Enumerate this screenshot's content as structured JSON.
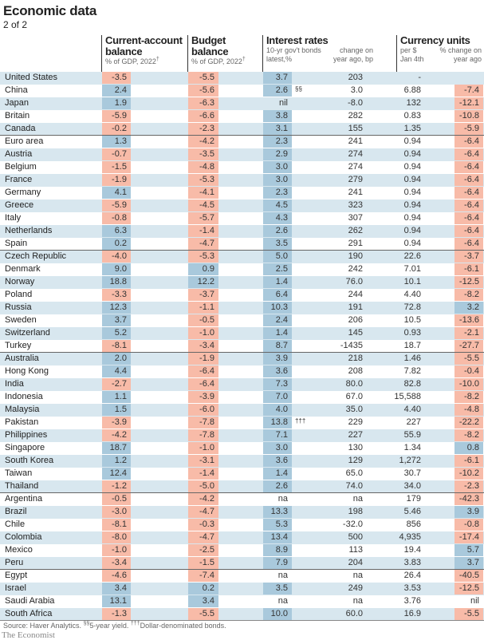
{
  "title": "Economic data",
  "subtitle": "2 of 2",
  "headers": {
    "current_account": {
      "title": "Current-account balance",
      "sub": "% of GDP, 2022",
      "mark": "†"
    },
    "budget": {
      "title": "Budget balance",
      "sub": "% of GDP, 2022",
      "mark": "†"
    },
    "interest": {
      "title": "Interest rates",
      "sub1": "10-yr gov't bonds latest,%",
      "sub2": "change on year ago, bp"
    },
    "currency": {
      "title": "Currency units",
      "sub1": "per $ Jan 4th",
      "sub2": "% change on year ago"
    }
  },
  "colors": {
    "stripe": "#d8e7ef",
    "positive": "#a9c9dc",
    "negative": "#f8bba8"
  },
  "group_ends": [
    4,
    13,
    21,
    32,
    38
  ],
  "rows": [
    [
      "United States",
      "-3.5",
      "-5.5",
      "3.7",
      "",
      "203",
      "-",
      ""
    ],
    [
      "China",
      "2.4",
      "-5.6",
      "2.6",
      "§§",
      "3.0",
      "6.88",
      "-7.4"
    ],
    [
      "Japan",
      "1.9",
      "-6.3",
      "nil",
      "",
      "-8.0",
      "132",
      "-12.1"
    ],
    [
      "Britain",
      "-5.9",
      "-6.6",
      "3.8",
      "",
      "282",
      "0.83",
      "-10.8"
    ],
    [
      "Canada",
      "-0.2",
      "-2.3",
      "3.1",
      "",
      "155",
      "1.35",
      "-5.9"
    ],
    [
      "Euro area",
      "1.3",
      "-4.2",
      "2.3",
      "",
      "241",
      "0.94",
      "-6.4"
    ],
    [
      "Austria",
      "-0.7",
      "-3.5",
      "2.9",
      "",
      "274",
      "0.94",
      "-6.4"
    ],
    [
      "Belgium",
      "-1.5",
      "-4.8",
      "3.0",
      "",
      "274",
      "0.94",
      "-6.4"
    ],
    [
      "France",
      "-1.9",
      "-5.3",
      "3.0",
      "",
      "279",
      "0.94",
      "-6.4"
    ],
    [
      "Germany",
      "4.1",
      "-4.1",
      "2.3",
      "",
      "241",
      "0.94",
      "-6.4"
    ],
    [
      "Greece",
      "-5.9",
      "-4.5",
      "4.5",
      "",
      "323",
      "0.94",
      "-6.4"
    ],
    [
      "Italy",
      "-0.8",
      "-5.7",
      "4.3",
      "",
      "307",
      "0.94",
      "-6.4"
    ],
    [
      "Netherlands",
      "6.3",
      "-1.4",
      "2.6",
      "",
      "262",
      "0.94",
      "-6.4"
    ],
    [
      "Spain",
      "0.2",
      "-4.7",
      "3.5",
      "",
      "291",
      "0.94",
      "-6.4"
    ],
    [
      "Czech Republic",
      "-4.0",
      "-5.3",
      "5.0",
      "",
      "190",
      "22.6",
      "-3.7"
    ],
    [
      "Denmark",
      "9.0",
      "0.9",
      "2.5",
      "",
      "242",
      "7.01",
      "-6.1"
    ],
    [
      "Norway",
      "18.8",
      "12.2",
      "1.4",
      "",
      "76.0",
      "10.1",
      "-12.5"
    ],
    [
      "Poland",
      "-3.3",
      "-3.7",
      "6.4",
      "",
      "244",
      "4.40",
      "-8.2"
    ],
    [
      "Russia",
      "12.3",
      "-1.1",
      "10.3",
      "",
      "191",
      "72.8",
      "3.2"
    ],
    [
      "Sweden",
      "3.7",
      "-0.5",
      "2.4",
      "",
      "206",
      "10.5",
      "-13.6"
    ],
    [
      "Switzerland",
      "5.2",
      "-1.0",
      "1.4",
      "",
      "145",
      "0.93",
      "-2.1"
    ],
    [
      "Turkey",
      "-8.1",
      "-3.4",
      "8.7",
      "",
      "-1435",
      "18.7",
      "-27.7"
    ],
    [
      "Australia",
      "2.0",
      "-1.9",
      "3.9",
      "",
      "218",
      "1.46",
      "-5.5"
    ],
    [
      "Hong Kong",
      "4.4",
      "-6.4",
      "3.6",
      "",
      "208",
      "7.82",
      "-0.4"
    ],
    [
      "India",
      "-2.7",
      "-6.4",
      "7.3",
      "",
      "80.0",
      "82.8",
      "-10.0"
    ],
    [
      "Indonesia",
      "1.1",
      "-3.9",
      "7.0",
      "",
      "67.0",
      "15,588",
      "-8.2"
    ],
    [
      "Malaysia",
      "1.5",
      "-6.0",
      "4.0",
      "",
      "35.0",
      "4.40",
      "-4.8"
    ],
    [
      "Pakistan",
      "-3.9",
      "-7.8",
      "13.8",
      "†††",
      "229",
      "227",
      "-22.2"
    ],
    [
      "Philippines",
      "-4.2",
      "-7.8",
      "7.1",
      "",
      "227",
      "55.9",
      "-8.2"
    ],
    [
      "Singapore",
      "18.7",
      "-1.0",
      "3.0",
      "",
      "130",
      "1.34",
      "0.8"
    ],
    [
      "South Korea",
      "1.2",
      "-3.1",
      "3.6",
      "",
      "129",
      "1,272",
      "-6.1"
    ],
    [
      "Taiwan",
      "12.4",
      "-1.4",
      "1.4",
      "",
      "65.0",
      "30.7",
      "-10.2"
    ],
    [
      "Thailand",
      "-1.2",
      "-5.0",
      "2.6",
      "",
      "74.0",
      "34.0",
      "-2.3"
    ],
    [
      "Argentina",
      "-0.5",
      "-4.2",
      "na",
      "",
      "na",
      "179",
      "-42.3"
    ],
    [
      "Brazil",
      "-3.0",
      "-4.7",
      "13.3",
      "",
      "198",
      "5.46",
      "3.9"
    ],
    [
      "Chile",
      "-8.1",
      "-0.3",
      "5.3",
      "",
      "-32.0",
      "856",
      "-0.8"
    ],
    [
      "Colombia",
      "-8.0",
      "-4.7",
      "13.4",
      "",
      "500",
      "4,935",
      "-17.4"
    ],
    [
      "Mexico",
      "-1.0",
      "-2.5",
      "8.9",
      "",
      "113",
      "19.4",
      "5.7"
    ],
    [
      "Peru",
      "-3.4",
      "-1.5",
      "7.9",
      "",
      "204",
      "3.83",
      "3.7"
    ],
    [
      "Egypt",
      "-4.6",
      "-7.4",
      "na",
      "",
      "na",
      "26.4",
      "-40.5"
    ],
    [
      "Israel",
      "3.4",
      "0.2",
      "3.5",
      "",
      "249",
      "3.53",
      "-12.5"
    ],
    [
      "Saudi Arabia",
      "13.1",
      "3.4",
      "na",
      "",
      "na",
      "3.76",
      "nil"
    ],
    [
      "South Africa",
      "-1.3",
      "-5.5",
      "10.0",
      "",
      "60.0",
      "16.9",
      "-5.5"
    ]
  ],
  "footer": {
    "source": "Source: Haver Analytics.",
    "fn1_mark": "§§",
    "fn1": "5-year yield.",
    "fn2_mark": "†††",
    "fn2": "Dollar-denominated bonds.",
    "brand": "The Economist"
  }
}
